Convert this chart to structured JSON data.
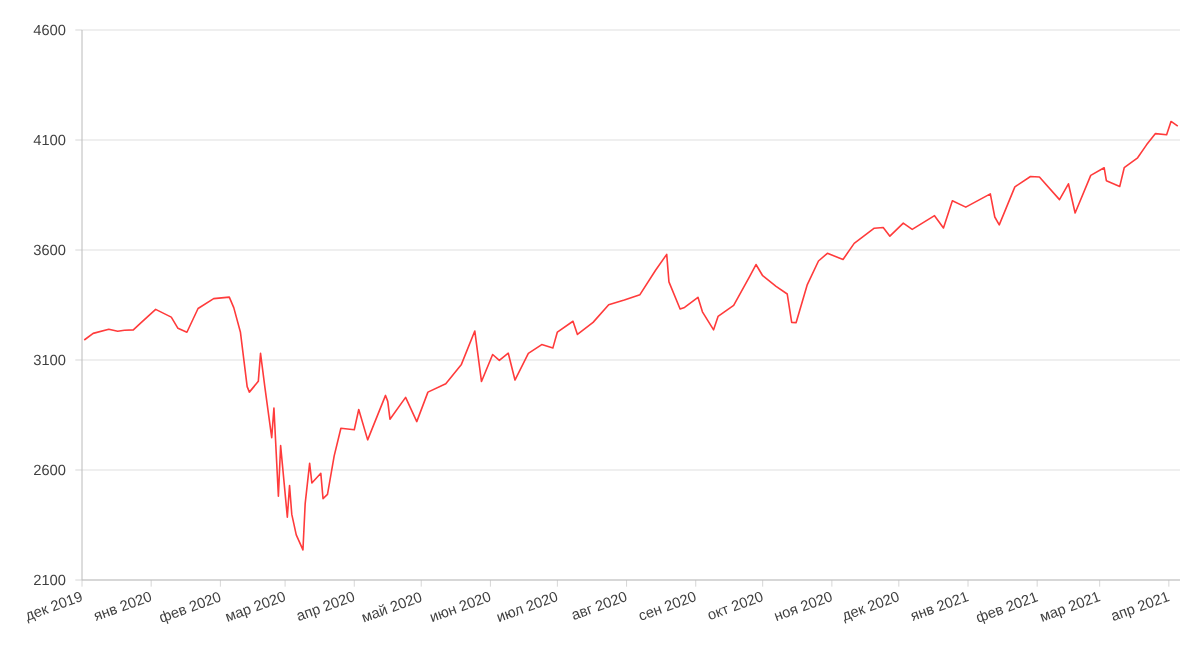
{
  "chart_data": {
    "type": "line",
    "grid": "y",
    "xlim": [
      "2019-12-15",
      "2021-04-20"
    ],
    "xticks": [
      {
        "value": "2019-12-15",
        "label": "дек 2019"
      },
      {
        "value": "2020-01-15",
        "label": "янв 2020"
      },
      {
        "value": "2020-02-15",
        "label": "фев 2020"
      },
      {
        "value": "2020-03-15",
        "label": "мар 2020"
      },
      {
        "value": "2020-04-15",
        "label": "апр 2020"
      },
      {
        "value": "2020-05-15",
        "label": "май 2020"
      },
      {
        "value": "2020-06-15",
        "label": "июн 2020"
      },
      {
        "value": "2020-07-15",
        "label": "июл 2020"
      },
      {
        "value": "2020-08-15",
        "label": "авг 2020"
      },
      {
        "value": "2020-09-15",
        "label": "сен 2020"
      },
      {
        "value": "2020-10-15",
        "label": "окт 2020"
      },
      {
        "value": "2020-11-15",
        "label": "ноя 2020"
      },
      {
        "value": "2020-12-15",
        "label": "дек 2020"
      },
      {
        "value": "2021-01-15",
        "label": "янв 2021"
      },
      {
        "value": "2021-02-15",
        "label": "фев 2021"
      },
      {
        "value": "2021-03-15",
        "label": "мар 2021"
      },
      {
        "value": "2021-04-15",
        "label": "апр 2021"
      }
    ],
    "ylim": [
      2100,
      4600
    ],
    "yticks": [
      2100,
      2600,
      3100,
      3600,
      4100,
      4600
    ],
    "x": [
      "2019-12-16",
      "2019-12-20",
      "2019-12-27",
      "2019-12-31",
      "2020-01-03",
      "2020-01-07",
      "2020-01-10",
      "2020-01-17",
      "2020-01-24",
      "2020-01-27",
      "2020-01-31",
      "2020-02-05",
      "2020-02-12",
      "2020-02-19",
      "2020-02-21",
      "2020-02-24",
      "2020-02-27",
      "2020-02-28",
      "2020-03-03",
      "2020-03-04",
      "2020-03-06",
      "2020-03-09",
      "2020-03-10",
      "2020-03-12",
      "2020-03-13",
      "2020-03-16",
      "2020-03-17",
      "2020-03-18",
      "2020-03-20",
      "2020-03-23",
      "2020-03-24",
      "2020-03-26",
      "2020-03-27",
      "2020-03-31",
      "2020-04-01",
      "2020-04-03",
      "2020-04-06",
      "2020-04-09",
      "2020-04-15",
      "2020-04-17",
      "2020-04-21",
      "2020-04-29",
      "2020-04-30",
      "2020-05-01",
      "2020-05-08",
      "2020-05-13",
      "2020-05-18",
      "2020-05-26",
      "2020-06-02",
      "2020-06-08",
      "2020-06-11",
      "2020-06-16",
      "2020-06-19",
      "2020-06-23",
      "2020-06-26",
      "2020-07-02",
      "2020-07-08",
      "2020-07-13",
      "2020-07-15",
      "2020-07-22",
      "2020-07-24",
      "2020-07-31",
      "2020-08-07",
      "2020-08-14",
      "2020-08-21",
      "2020-08-28",
      "2020-09-02",
      "2020-09-03",
      "2020-09-08",
      "2020-09-10",
      "2020-09-16",
      "2020-09-18",
      "2020-09-23",
      "2020-09-25",
      "2020-10-02",
      "2020-10-09",
      "2020-10-12",
      "2020-10-15",
      "2020-10-21",
      "2020-10-26",
      "2020-10-28",
      "2020-10-30",
      "2020-11-04",
      "2020-11-09",
      "2020-11-13",
      "2020-11-20",
      "2020-11-25",
      "2020-12-04",
      "2020-12-08",
      "2020-12-11",
      "2020-12-17",
      "2020-12-21",
      "2020-12-31",
      "2021-01-04",
      "2021-01-08",
      "2021-01-14",
      "2021-01-25",
      "2021-01-27",
      "2021-01-29",
      "2021-02-05",
      "2021-02-12",
      "2021-02-16",
      "2021-02-25",
      "2021-03-01",
      "2021-03-04",
      "2021-03-11",
      "2021-03-17",
      "2021-03-18",
      "2021-03-24",
      "2021-03-26",
      "2021-04-01",
      "2021-04-05",
      "2021-04-09",
      "2021-04-14",
      "2021-04-16",
      "2021-04-19"
    ],
    "series": [
      {
        "color": "#ff3b3b",
        "values": [
          3191,
          3221,
          3240,
          3231,
          3235,
          3237,
          3265,
          3330,
          3295,
          3244,
          3226,
          3334,
          3379,
          3386,
          3338,
          3226,
          2979,
          2954,
          3003,
          3130,
          2972,
          2747,
          2882,
          2481,
          2711,
          2386,
          2529,
          2398,
          2305,
          2237,
          2447,
          2630,
          2541,
          2585,
          2470,
          2489,
          2664,
          2790,
          2783,
          2875,
          2737,
          2939,
          2912,
          2831,
          2930,
          2820,
          2954,
          2992,
          3080,
          3232,
          3002,
          3125,
          3098,
          3131,
          3009,
          3130,
          3170,
          3155,
          3227,
          3276,
          3216,
          3271,
          3351,
          3373,
          3397,
          3508,
          3580,
          3455,
          3332,
          3339,
          3385,
          3319,
          3237,
          3298,
          3348,
          3477,
          3534,
          3483,
          3435,
          3400,
          3271,
          3270,
          3443,
          3550,
          3585,
          3557,
          3630,
          3699,
          3702,
          3663,
          3722,
          3694,
          3756,
          3700,
          3824,
          3795,
          3855,
          3750,
          3714,
          3887,
          3934,
          3932,
          3829,
          3901,
          3768,
          3939,
          3974,
          3915,
          3889,
          3974,
          4019,
          4078,
          4129,
          4124,
          4185,
          4163
        ]
      }
    ]
  }
}
